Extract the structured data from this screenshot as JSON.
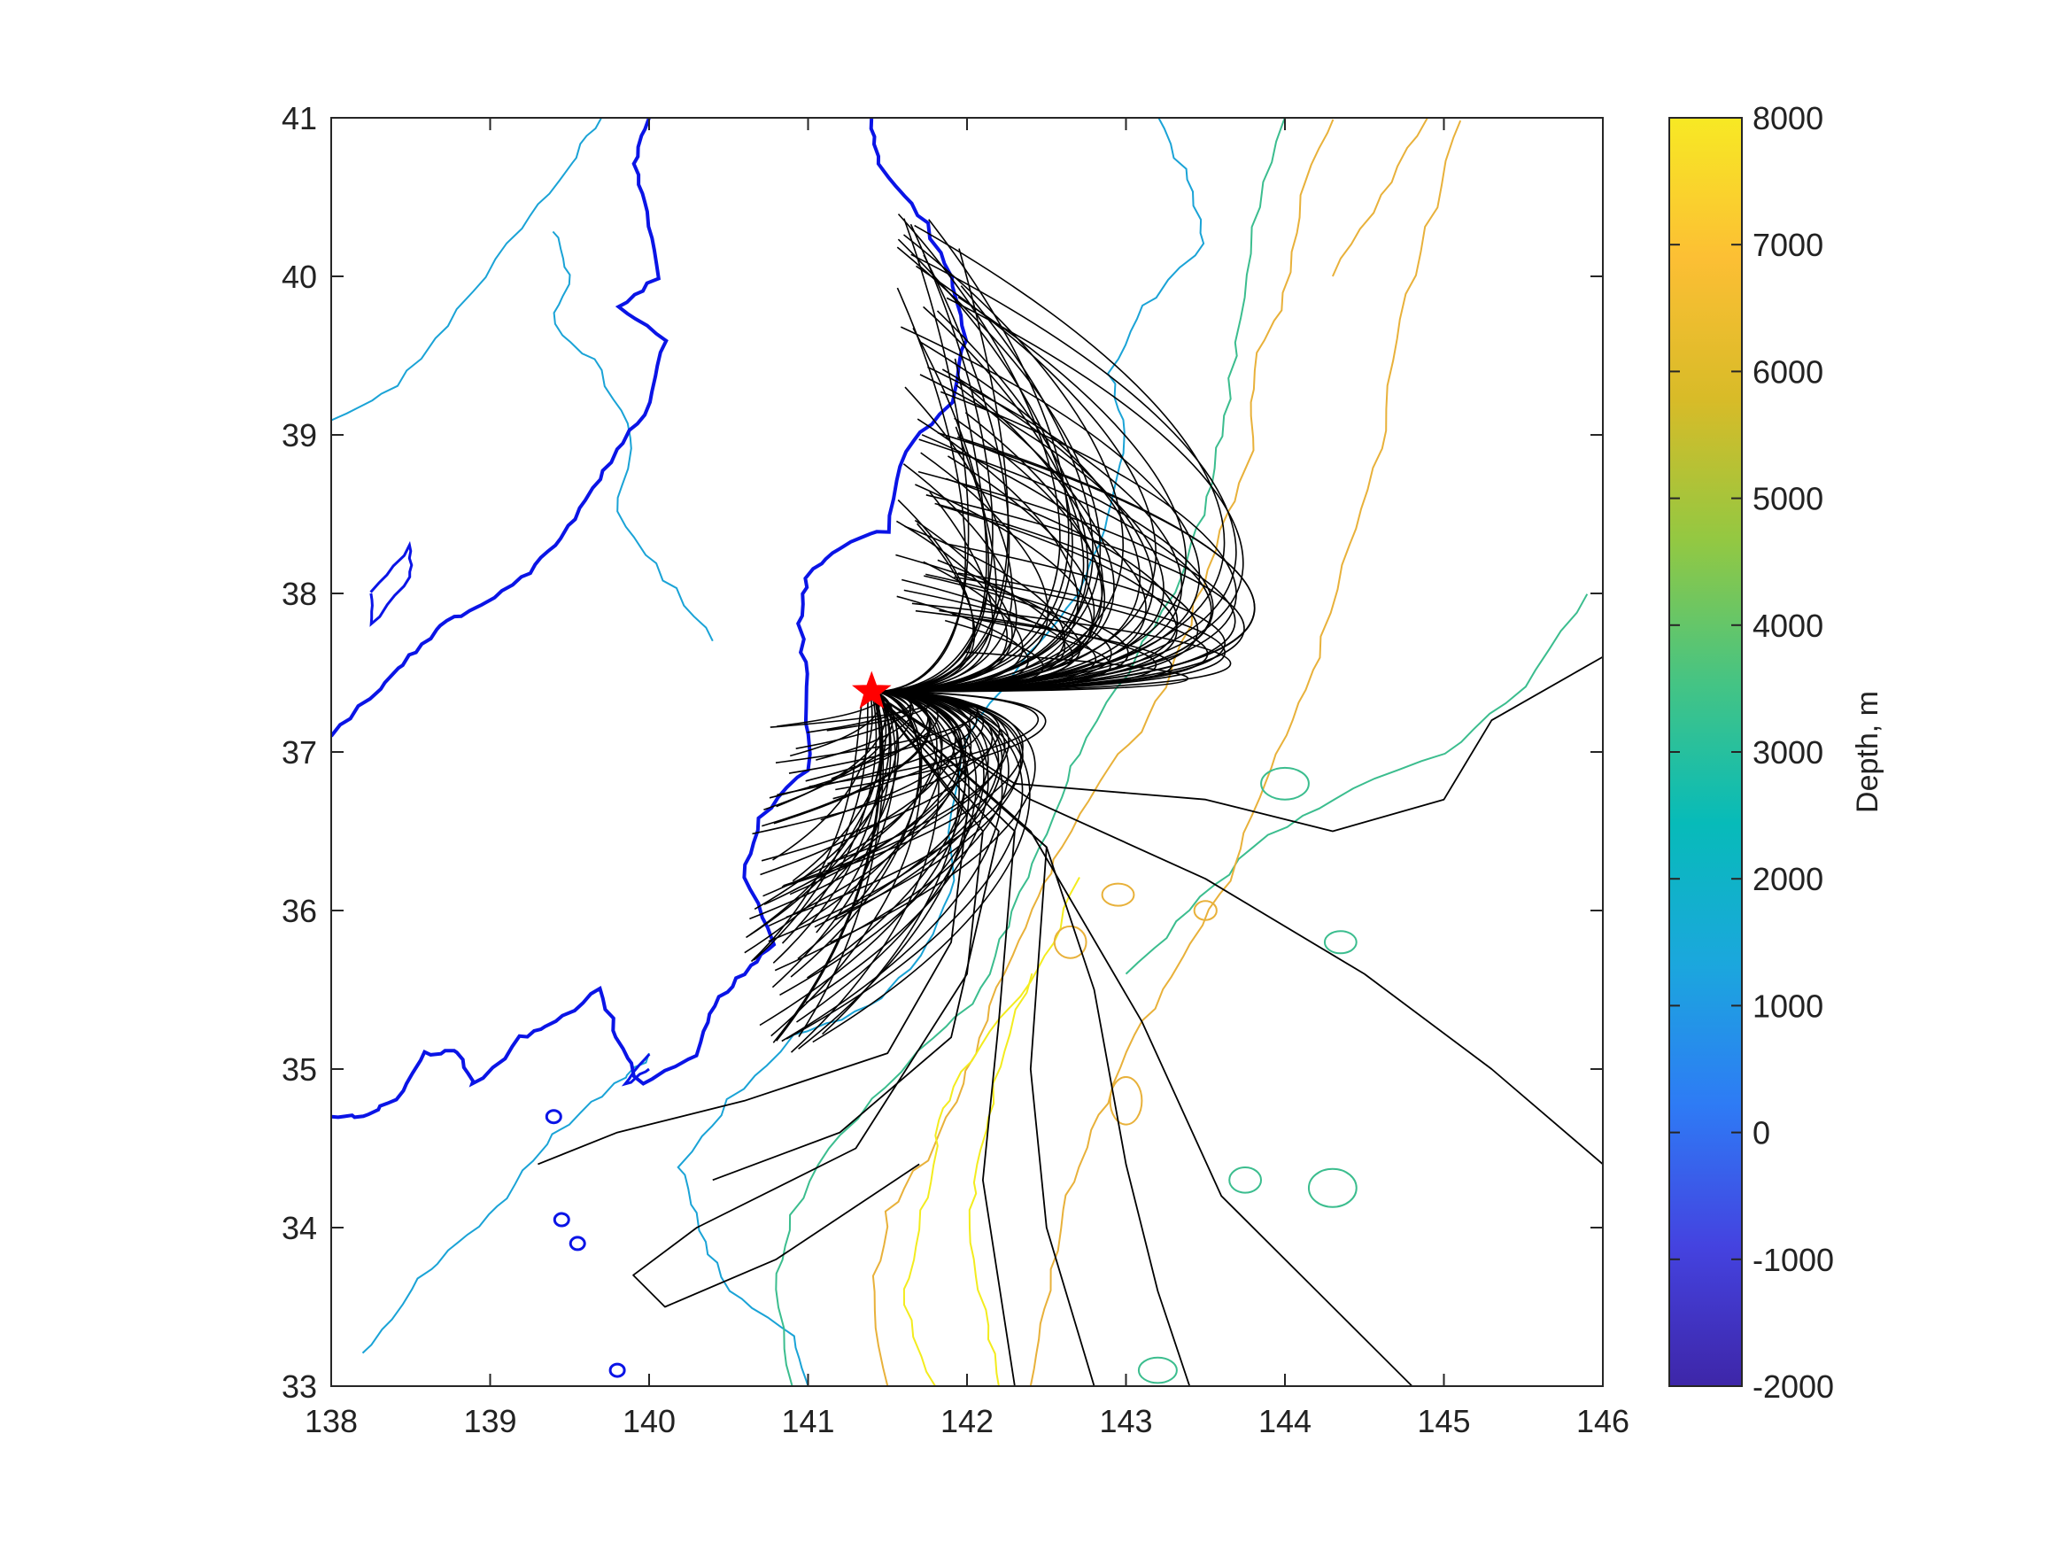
{
  "chart_data": {
    "type": "map-contour",
    "title": "",
    "xlabel": "",
    "ylabel": "",
    "xlim": [
      138,
      146
    ],
    "ylim": [
      33,
      41
    ],
    "xticks": [
      138,
      139,
      140,
      141,
      142,
      143,
      144,
      145,
      146
    ],
    "yticks": [
      33,
      34,
      35,
      36,
      37,
      38,
      39,
      40,
      41
    ],
    "grid": false,
    "legend": "none",
    "source_point": {
      "lon": 141.4,
      "lat": 37.38,
      "marker": "star",
      "color": "#ff0000"
    },
    "colorbar": {
      "label": "Depth, m",
      "limits": [
        -2000,
        8000
      ],
      "ticks": [
        -2000,
        -1000,
        0,
        1000,
        2000,
        3000,
        4000,
        5000,
        6000,
        7000,
        8000
      ],
      "colormap": [
        "#3e26a8",
        "#4443e0",
        "#2e7bf5",
        "#1ba7dd",
        "#07bbb9",
        "#46c483",
        "#93c842",
        "#d8bb28",
        "#fcbf34",
        "#f7e924"
      ]
    },
    "colors": {
      "coastline": "#0a14e6",
      "rays": "#000000",
      "contour_2000": "#1aa3d6",
      "contour_4000": "#3bbd8e",
      "contour_6000": "#e8b13a",
      "contour_7500": "#f3ec1e"
    }
  }
}
